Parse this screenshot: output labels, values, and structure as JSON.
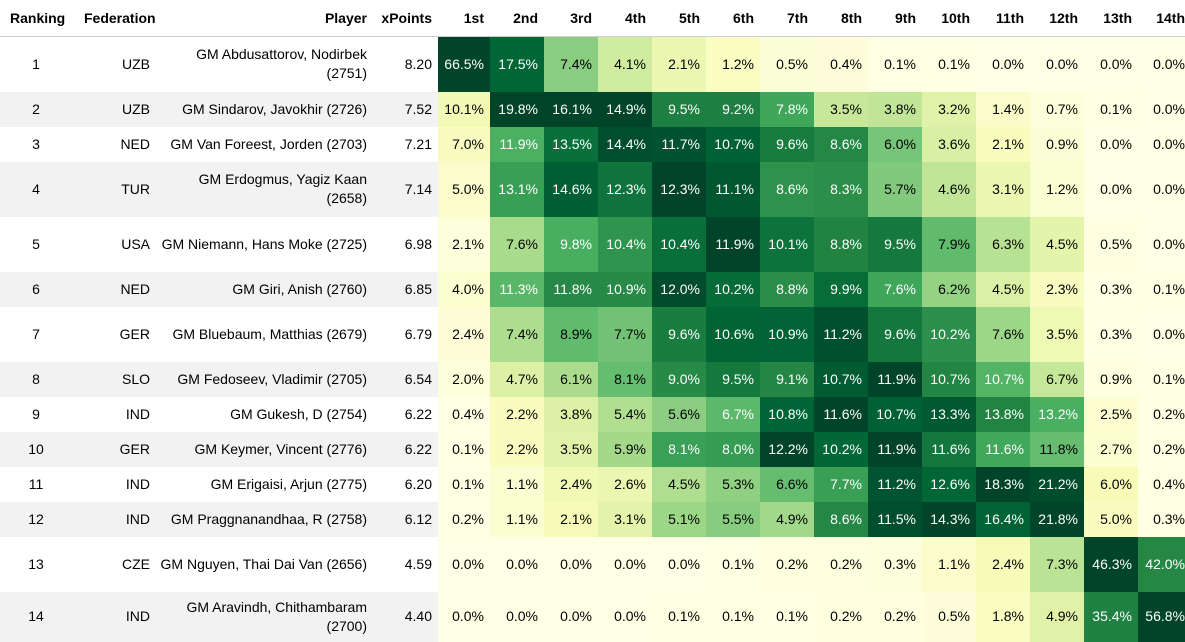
{
  "headers": [
    "Ranking",
    "Federation",
    "Player",
    "xPoints",
    "1st",
    "2nd",
    "3rd",
    "4th",
    "5th",
    "6th",
    "7th",
    "8th",
    "9th",
    "10th",
    "11th",
    "12th",
    "13th",
    "14th"
  ],
  "chart_data": {
    "type": "table",
    "columns": [
      "1st",
      "2nd",
      "3rd",
      "4th",
      "5th",
      "6th",
      "7th",
      "8th",
      "9th",
      "10th",
      "11th",
      "12th",
      "13th",
      "14th"
    ],
    "rows": [
      {
        "rank": "1",
        "fed": "UZB",
        "player": "GM Abdusattorov, Nodirbek (2751)",
        "xpoints": "8.20",
        "values": [
          66.5,
          17.5,
          7.4,
          4.1,
          2.1,
          1.2,
          0.5,
          0.4,
          0.1,
          0.1,
          0.0,
          0.0,
          0.0,
          0.0
        ]
      },
      {
        "rank": "2",
        "fed": "UZB",
        "player": "GM Sindarov, Javokhir (2726)",
        "xpoints": "7.52",
        "values": [
          10.1,
          19.8,
          16.1,
          14.9,
          9.5,
          9.2,
          7.8,
          3.5,
          3.8,
          3.2,
          1.4,
          0.7,
          0.1,
          0.0
        ]
      },
      {
        "rank": "3",
        "fed": "NED",
        "player": "GM Van Foreest, Jorden (2703)",
        "xpoints": "7.21",
        "values": [
          7.0,
          11.9,
          13.5,
          14.4,
          11.7,
          10.7,
          9.6,
          8.6,
          6.0,
          3.6,
          2.1,
          0.9,
          0.0,
          0.0
        ]
      },
      {
        "rank": "4",
        "fed": "TUR",
        "player": "GM Erdogmus, Yagiz Kaan (2658)",
        "xpoints": "7.14",
        "values": [
          5.0,
          13.1,
          14.6,
          12.3,
          12.3,
          11.1,
          8.6,
          8.3,
          5.7,
          4.6,
          3.1,
          1.2,
          0.0,
          0.0
        ]
      },
      {
        "rank": "5",
        "fed": "USA",
        "player": "GM Niemann, Hans Moke (2725)",
        "xpoints": "6.98",
        "values": [
          2.1,
          7.6,
          9.8,
          10.4,
          10.4,
          11.9,
          10.1,
          8.8,
          9.5,
          7.9,
          6.3,
          4.5,
          0.5,
          0.0
        ]
      },
      {
        "rank": "6",
        "fed": "NED",
        "player": "GM Giri, Anish (2760)",
        "xpoints": "6.85",
        "values": [
          4.0,
          11.3,
          11.8,
          10.9,
          12.0,
          10.2,
          8.8,
          9.9,
          7.6,
          6.2,
          4.5,
          2.3,
          0.3,
          0.1
        ]
      },
      {
        "rank": "7",
        "fed": "GER",
        "player": "GM Bluebaum, Matthias (2679)",
        "xpoints": "6.79",
        "values": [
          2.4,
          7.4,
          8.9,
          7.7,
          9.6,
          10.6,
          10.9,
          11.2,
          9.6,
          10.2,
          7.6,
          3.5,
          0.3,
          0.0
        ]
      },
      {
        "rank": "8",
        "fed": "SLO",
        "player": "GM Fedoseev, Vladimir (2705)",
        "xpoints": "6.54",
        "values": [
          2.0,
          4.7,
          6.1,
          8.1,
          9.0,
          9.5,
          9.1,
          10.7,
          11.9,
          10.7,
          10.7,
          6.7,
          0.9,
          0.1
        ]
      },
      {
        "rank": "9",
        "fed": "IND",
        "player": "GM Gukesh, D (2754)",
        "xpoints": "6.22",
        "values": [
          0.4,
          2.2,
          3.8,
          5.4,
          5.6,
          6.7,
          10.8,
          11.6,
          10.7,
          13.3,
          13.8,
          13.2,
          2.5,
          0.2
        ]
      },
      {
        "rank": "10",
        "fed": "GER",
        "player": "GM Keymer, Vincent (2776)",
        "xpoints": "6.22",
        "values": [
          0.1,
          2.2,
          3.5,
          5.9,
          8.1,
          8.0,
          12.2,
          10.2,
          11.9,
          11.6,
          11.6,
          11.8,
          2.7,
          0.2
        ]
      },
      {
        "rank": "11",
        "fed": "IND",
        "player": "GM Erigaisi, Arjun (2775)",
        "xpoints": "6.20",
        "values": [
          0.1,
          1.1,
          2.4,
          2.6,
          4.5,
          5.3,
          6.6,
          7.7,
          11.2,
          12.6,
          18.3,
          21.2,
          6.0,
          0.4
        ]
      },
      {
        "rank": "12",
        "fed": "IND",
        "player": "GM Praggnanandhaa, R (2758)",
        "xpoints": "6.12",
        "values": [
          0.2,
          1.1,
          2.1,
          3.1,
          5.1,
          5.5,
          4.9,
          8.6,
          11.5,
          14.3,
          16.4,
          21.8,
          5.0,
          0.3
        ]
      },
      {
        "rank": "13",
        "fed": "CZE",
        "player": "GM Nguyen, Thai Dai Van (2656)",
        "xpoints": "4.59",
        "values": [
          0.0,
          0.0,
          0.0,
          0.0,
          0.0,
          0.1,
          0.2,
          0.2,
          0.3,
          1.1,
          2.4,
          7.3,
          46.3,
          42.0
        ]
      },
      {
        "rank": "14",
        "fed": "IND",
        "player": "GM Aravindh, Chithambaram (2700)",
        "xpoints": "4.40",
        "values": [
          0.0,
          0.0,
          0.0,
          0.0,
          0.1,
          0.1,
          0.1,
          0.2,
          0.2,
          0.5,
          1.8,
          4.9,
          35.4,
          56.8
        ]
      }
    ]
  },
  "colors": {
    "scale_low": "#ffffe5",
    "scale_mid": "#78c679",
    "scale_high": "#004529",
    "row_alt": "#f2f2f2"
  }
}
